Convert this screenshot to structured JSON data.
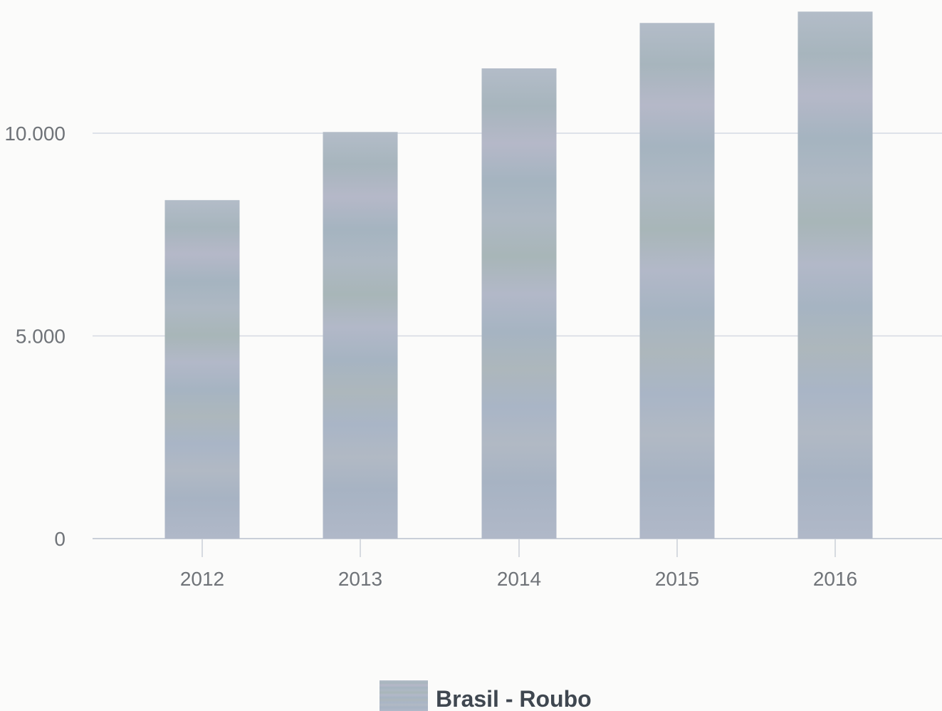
{
  "chart_data": {
    "type": "bar",
    "categories": [
      "2012",
      "2013",
      "2014",
      "2015",
      "2016"
    ],
    "series": [
      {
        "name": "Brasil - Roubo",
        "values": [
          8350,
          10030,
          11600,
          12720,
          13000
        ]
      }
    ],
    "ylim": [
      0,
      13300
    ],
    "yticks": [
      0,
      5000,
      10000
    ],
    "ytick_labels": [
      "0",
      "5.000",
      "10.000"
    ],
    "grid": true,
    "legend": "bottom-center",
    "title": "",
    "xlabel": "",
    "ylabel": "",
    "colors": {
      "bar": "#a9b4c4",
      "grid": "#d5dae3",
      "axis": "#c9cfd8",
      "text": "#6f7378"
    }
  }
}
